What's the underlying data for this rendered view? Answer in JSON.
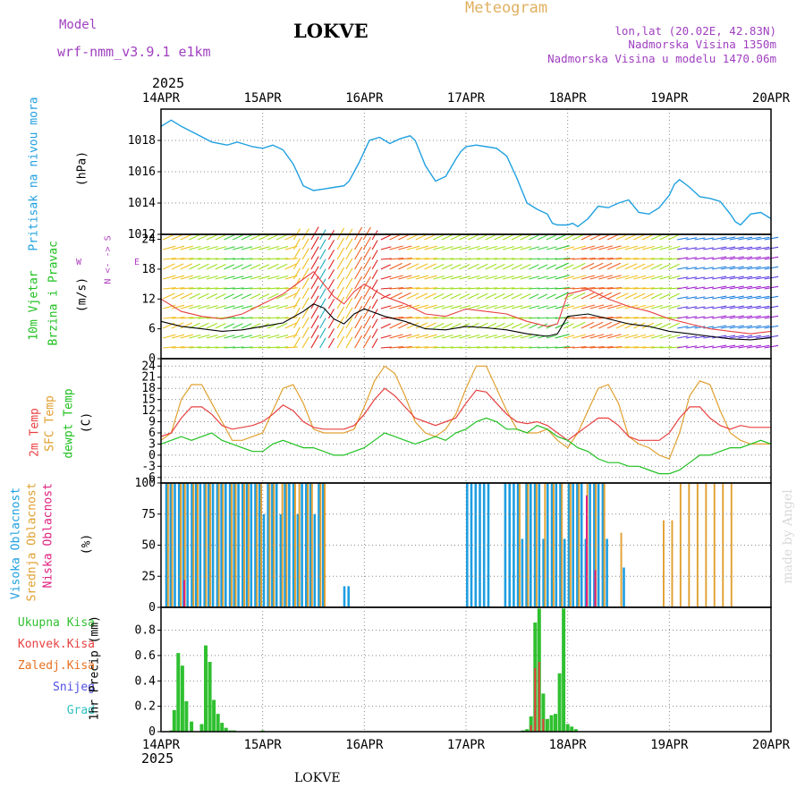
{
  "header": {
    "model_label": "Model",
    "model_name": "wrf-nmm_v3.9.1 e1km",
    "station": "LOKVE",
    "meteogram": "Meteogram",
    "coords": "lon,lat (20.02E, 42.83N)",
    "elev": "Nadmorska Visina 1350m",
    "elev_model": "Nadmorska Visina u modelu 1470.06m"
  },
  "footer": {
    "station": "LOKVE",
    "credit": "made by Angel"
  },
  "axis": {
    "year": "2025",
    "dates": [
      "14APR",
      "15APR",
      "16APR",
      "17APR",
      "18APR",
      "19APR",
      "20APR"
    ]
  },
  "colors": {
    "pressure": "#1fa0e0",
    "temp2m": "#e84040",
    "sfc": "#e0a030",
    "dewpt": "#20c020",
    "wind_speed": "#000000",
    "gust": "#e84040",
    "high_cloud": "#1e9ee0",
    "mid_cloud": "#e0a030",
    "low_cloud": "#e02080",
    "total_precip": "#30c030",
    "conv_precip": "#e84040",
    "frz_precip": "#e87020",
    "snow": "#5050e0",
    "hail": "#30c0c0"
  },
  "panels": {
    "pressure": {
      "label": "Pritisak na nivou mora",
      "unit": "(hPa)"
    },
    "wind": {
      "label1": "10m Vjetar",
      "label2": "Brzina i Pravac",
      "unit": "(m/s)",
      "compass": "W <- -> E",
      "compass_ns": "N <- -> S"
    },
    "temp": {
      "label1": "2m Temp",
      "label2": "SFC Temp",
      "label3": "dewpt Temp",
      "unit": "(C)"
    },
    "cloud": {
      "label1": "Visoka Oblacnost",
      "label2": "Srednja Oblacnost",
      "label3": "Niska Oblacnost",
      "unit": "(%)"
    },
    "precip": {
      "labels": [
        "Ukupna Kisa",
        "Konvek.Kisa",
        "Zaledj.Kisa",
        "Snijeg",
        "Grad"
      ],
      "unit": "1hr Precip (mm)"
    }
  },
  "chart_data": [
    {
      "type": "line",
      "title": "Pritisak na nivou mora",
      "ylabel": "(hPa)",
      "ylim": [
        1012,
        1020
      ],
      "yticks": [
        "1012",
        "1014",
        "1016",
        "1018"
      ],
      "x_days": [
        0,
        0.1,
        0.2,
        0.35,
        0.5,
        0.65,
        0.75,
        0.9,
        1.0,
        1.1,
        1.2,
        1.3,
        1.35,
        1.4,
        1.5,
        1.6,
        1.7,
        1.8,
        1.85,
        1.95,
        2.05,
        2.15,
        2.25,
        2.35,
        2.45,
        2.5,
        2.6,
        2.7,
        2.8,
        2.9,
        2.95,
        3.0,
        3.1,
        3.2,
        3.3,
        3.4,
        3.5,
        3.6,
        3.7,
        3.8,
        3.85,
        3.9,
        4.0,
        4.05,
        4.1,
        4.2,
        4.3,
        4.4,
        4.5,
        4.6,
        4.7,
        4.8,
        4.9,
        5.0,
        5.05,
        5.1,
        5.2,
        5.3,
        5.4,
        5.5,
        5.6,
        5.65,
        5.7,
        5.8,
        5.9,
        6.0
      ],
      "values": [
        1018.9,
        1019.3,
        1018.9,
        1018.4,
        1017.9,
        1017.7,
        1017.9,
        1017.6,
        1017.5,
        1017.7,
        1017.4,
        1016.5,
        1015.8,
        1015.1,
        1014.8,
        1014.9,
        1015.0,
        1015.1,
        1015.4,
        1016.6,
        1018.0,
        1018.2,
        1017.8,
        1018.1,
        1018.3,
        1018.0,
        1016.4,
        1015.4,
        1015.7,
        1016.8,
        1017.3,
        1017.6,
        1017.7,
        1017.6,
        1017.5,
        1017.0,
        1015.6,
        1014.0,
        1013.6,
        1013.3,
        1012.7,
        1012.6,
        1012.6,
        1012.7,
        1012.5,
        1013.0,
        1013.8,
        1013.7,
        1014.0,
        1014.2,
        1013.4,
        1013.3,
        1013.7,
        1014.5,
        1015.2,
        1015.5,
        1015.0,
        1014.4,
        1014.3,
        1014.1,
        1013.3,
        1012.8,
        1012.6,
        1013.3,
        1013.4,
        1013.0
      ]
    },
    {
      "type": "line",
      "title": "10m Vjetar Brzina i Pravac",
      "ylabel": "(m/s)",
      "ylim": [
        0,
        25
      ],
      "yticks": [
        "0",
        "6",
        "12",
        "18",
        "24"
      ],
      "series": [
        {
          "name": "wind_speed",
          "x_days": [
            0,
            0.2,
            0.4,
            0.6,
            0.8,
            1.0,
            1.2,
            1.4,
            1.5,
            1.6,
            1.7,
            1.8,
            1.9,
            2.0,
            2.2,
            2.4,
            2.6,
            2.8,
            3.0,
            3.2,
            3.4,
            3.6,
            3.8,
            3.9,
            4.0,
            4.2,
            4.4,
            4.6,
            4.8,
            5.0,
            5.2,
            5.4,
            5.6,
            5.8,
            6.0
          ],
          "values": [
            7.5,
            6.5,
            6.0,
            5.5,
            5.8,
            6.5,
            7.2,
            9.5,
            11.0,
            10.2,
            8.0,
            7.0,
            9.0,
            10.0,
            8.5,
            7.5,
            6.0,
            5.8,
            6.5,
            6.2,
            5.8,
            5.0,
            4.5,
            5.0,
            8.5,
            9.0,
            8.0,
            7.0,
            6.5,
            5.5,
            5.0,
            4.5,
            4.0,
            3.8,
            4.2
          ]
        },
        {
          "name": "gust",
          "x_days": [
            0,
            0.2,
            0.4,
            0.6,
            0.8,
            1.0,
            1.2,
            1.4,
            1.5,
            1.6,
            1.7,
            1.8,
            1.9,
            2.0,
            2.2,
            2.4,
            2.6,
            2.8,
            3.0,
            3.2,
            3.4,
            3.6,
            3.8,
            3.9,
            4.0,
            4.2,
            4.4,
            4.6,
            4.8,
            5.0,
            5.2,
            5.4,
            5.6,
            5.8,
            6.0
          ],
          "values": [
            12.0,
            9.5,
            8.5,
            8.0,
            9.0,
            11.0,
            13.0,
            16.0,
            17.5,
            15.0,
            12.5,
            11.0,
            13.5,
            15.0,
            12.5,
            11.0,
            9.0,
            8.5,
            10.0,
            9.5,
            9.0,
            7.5,
            6.5,
            7.0,
            13.0,
            14.0,
            12.0,
            10.5,
            9.5,
            8.0,
            7.0,
            6.0,
            5.5,
            5.0,
            5.5
          ]
        }
      ]
    },
    {
      "type": "line",
      "title": "2m Temp / SFC Temp / dewpt Temp",
      "ylabel": "(C)",
      "ylim": [
        -7.5,
        26
      ],
      "yticks": [
        "-6",
        "-3",
        "0",
        "3",
        "6",
        "9",
        "12",
        "15",
        "18",
        "21",
        "24"
      ],
      "x_days": [
        0,
        0.1,
        0.2,
        0.3,
        0.4,
        0.5,
        0.6,
        0.7,
        0.8,
        0.9,
        1.0,
        1.1,
        1.2,
        1.3,
        1.4,
        1.5,
        1.6,
        1.7,
        1.8,
        1.9,
        2.0,
        2.1,
        2.2,
        2.3,
        2.4,
        2.5,
        2.6,
        2.7,
        2.8,
        2.9,
        3.0,
        3.1,
        3.2,
        3.3,
        3.4,
        3.5,
        3.6,
        3.7,
        3.8,
        3.9,
        4.0,
        4.1,
        4.2,
        4.3,
        4.4,
        4.5,
        4.6,
        4.7,
        4.8,
        4.9,
        5.0,
        5.1,
        5.2,
        5.3,
        5.4,
        5.5,
        5.6,
        5.7,
        5.8,
        5.9,
        6.0
      ],
      "series": [
        {
          "name": "2m Temp",
          "values": [
            5,
            6,
            10,
            13,
            13,
            11,
            8,
            7,
            7.5,
            8,
            9,
            11,
            13.5,
            12,
            9,
            7.5,
            7,
            7,
            7,
            8,
            11,
            15,
            18,
            16,
            13,
            10,
            9,
            8,
            9,
            10,
            14,
            17.5,
            17,
            14,
            11,
            9,
            8.5,
            9,
            8,
            6,
            4,
            6,
            8,
            10,
            10,
            8,
            5,
            4,
            4,
            4,
            6,
            10,
            13,
            13,
            10,
            8,
            7,
            8,
            7.5,
            7.5,
            7.5
          ]
        },
        {
          "name": "SFC Temp",
          "values": [
            4,
            6,
            15,
            19,
            19,
            14,
            9,
            4,
            4,
            5,
            6,
            12,
            18,
            19,
            14,
            7,
            6,
            6,
            6,
            7,
            13,
            20,
            24,
            22,
            16,
            9,
            6,
            5,
            7,
            11,
            18,
            24,
            24,
            18,
            12,
            7,
            6,
            6,
            7,
            4,
            2,
            6,
            12,
            18,
            19,
            14,
            5,
            3,
            2,
            0,
            -1,
            6,
            16,
            20,
            19,
            12,
            6,
            4,
            3,
            3,
            3
          ]
        },
        {
          "name": "dewpt Temp",
          "values": [
            3,
            4,
            5,
            4,
            5,
            6,
            4,
            3,
            2,
            1,
            1,
            3,
            4,
            3,
            2,
            2,
            1,
            0,
            0,
            1,
            2,
            4,
            6,
            5,
            4,
            3,
            4,
            5,
            4,
            6,
            7,
            9,
            10,
            9,
            7,
            7,
            6,
            8,
            7,
            5,
            4,
            2,
            1,
            -1,
            -2,
            -2,
            -3,
            -3,
            -4,
            -5,
            -5,
            -4,
            -2,
            0,
            0,
            1,
            2,
            2,
            3,
            4,
            3
          ]
        }
      ]
    },
    {
      "type": "bar",
      "title": "Visoka / Srednja / Niska Oblacnost",
      "ylabel": "(%)",
      "ylim": [
        0,
        100
      ],
      "yticks": [
        "0",
        "25",
        "50",
        "75",
        "100"
      ],
      "series": [
        {
          "name": "Visoka Oblacnost",
          "values_by_hour_summary": "100 on 14APR 00-22h, 100 on 14APR-15APR 12h, 17 near 15APR 20h, 100 on 16APR 18h-17APR 00h, 100 on 17APR 06h-17APR 21h, 0 afterwards"
        },
        {
          "name": "Srednja Oblacnost",
          "values_by_hour_summary": "100 on 14APR-15APR 12h, 100 on 17APR-17APR 21h, 60 near 18APR, 70-100 on 18APR 12h-19APR 03h, 0 afterwards"
        },
        {
          "name": "Niska Oblacnost",
          "values_by_hour_summary": "mostly 0, up to 90 near 17APR 21h"
        }
      ]
    },
    {
      "type": "bar",
      "title": "1hr Precip",
      "ylabel": "1hr Precip (mm)",
      "ylim": [
        0,
        0.98
      ],
      "yticks": [
        "0",
        "0.2",
        "0.4",
        "0.6",
        "0.8"
      ],
      "series": [
        {
          "name": "Ukupna Kisa",
          "x_days": [
            0.1,
            0.13,
            0.17,
            0.21,
            0.25,
            0.3,
            0.4,
            0.44,
            0.48,
            0.52,
            0.56,
            0.6,
            0.64,
            0.68,
            0.72,
            1.0,
            3.56,
            3.6,
            3.64,
            3.68,
            3.72,
            3.76,
            3.8,
            3.84,
            3.88,
            3.92,
            3.96,
            4.0,
            4.04,
            4.08
          ],
          "values": [
            0.01,
            0.17,
            0.62,
            0.52,
            0.24,
            0.08,
            0.06,
            0.68,
            0.55,
            0.25,
            0.14,
            0.07,
            0.03,
            0.01,
            0.01,
            0.01,
            0.01,
            0.02,
            0.12,
            0.86,
            0.97,
            0.3,
            0.1,
            0.13,
            0.14,
            0.46,
            0.97,
            0.06,
            0.04,
            0.02
          ]
        },
        {
          "name": "Konvek.Kisa",
          "x_days": [
            3.64,
            3.68,
            3.72,
            3.76
          ],
          "values": [
            0.05,
            0.5,
            0.55,
            0.1
          ]
        }
      ]
    }
  ]
}
